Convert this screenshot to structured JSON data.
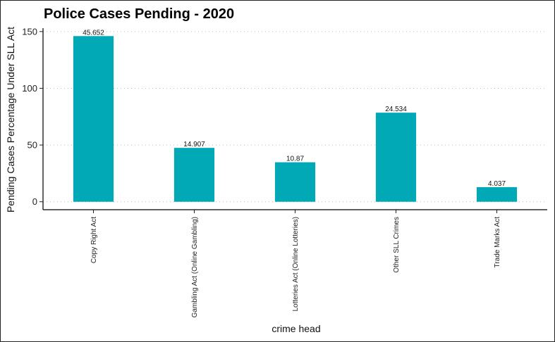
{
  "chart_data": {
    "type": "bar",
    "title": "Police Cases Pending - 2020",
    "xlabel": "crime head",
    "ylabel": "Pending Cases Percentage Under SLL Act",
    "categories": [
      "Copy Right Act",
      "Gambling Act (Online Gambling)",
      "Lotteries Act (Online Lotteries)",
      "Other SLL Crimes",
      "Trade Marks Act"
    ],
    "values": [
      146,
      47.5,
      34.8,
      78.5,
      12.9
    ],
    "data_labels": [
      "45.652",
      "14.907",
      "10.87",
      "24.534",
      "4.037"
    ],
    "ylim": [
      -7,
      153
    ],
    "yticks": [
      0,
      50,
      100,
      150
    ],
    "ytick_labels": [
      "0",
      "50",
      "100",
      "150"
    ],
    "grid": "horizontal-dotted",
    "bar_color": "#00A9B5"
  }
}
